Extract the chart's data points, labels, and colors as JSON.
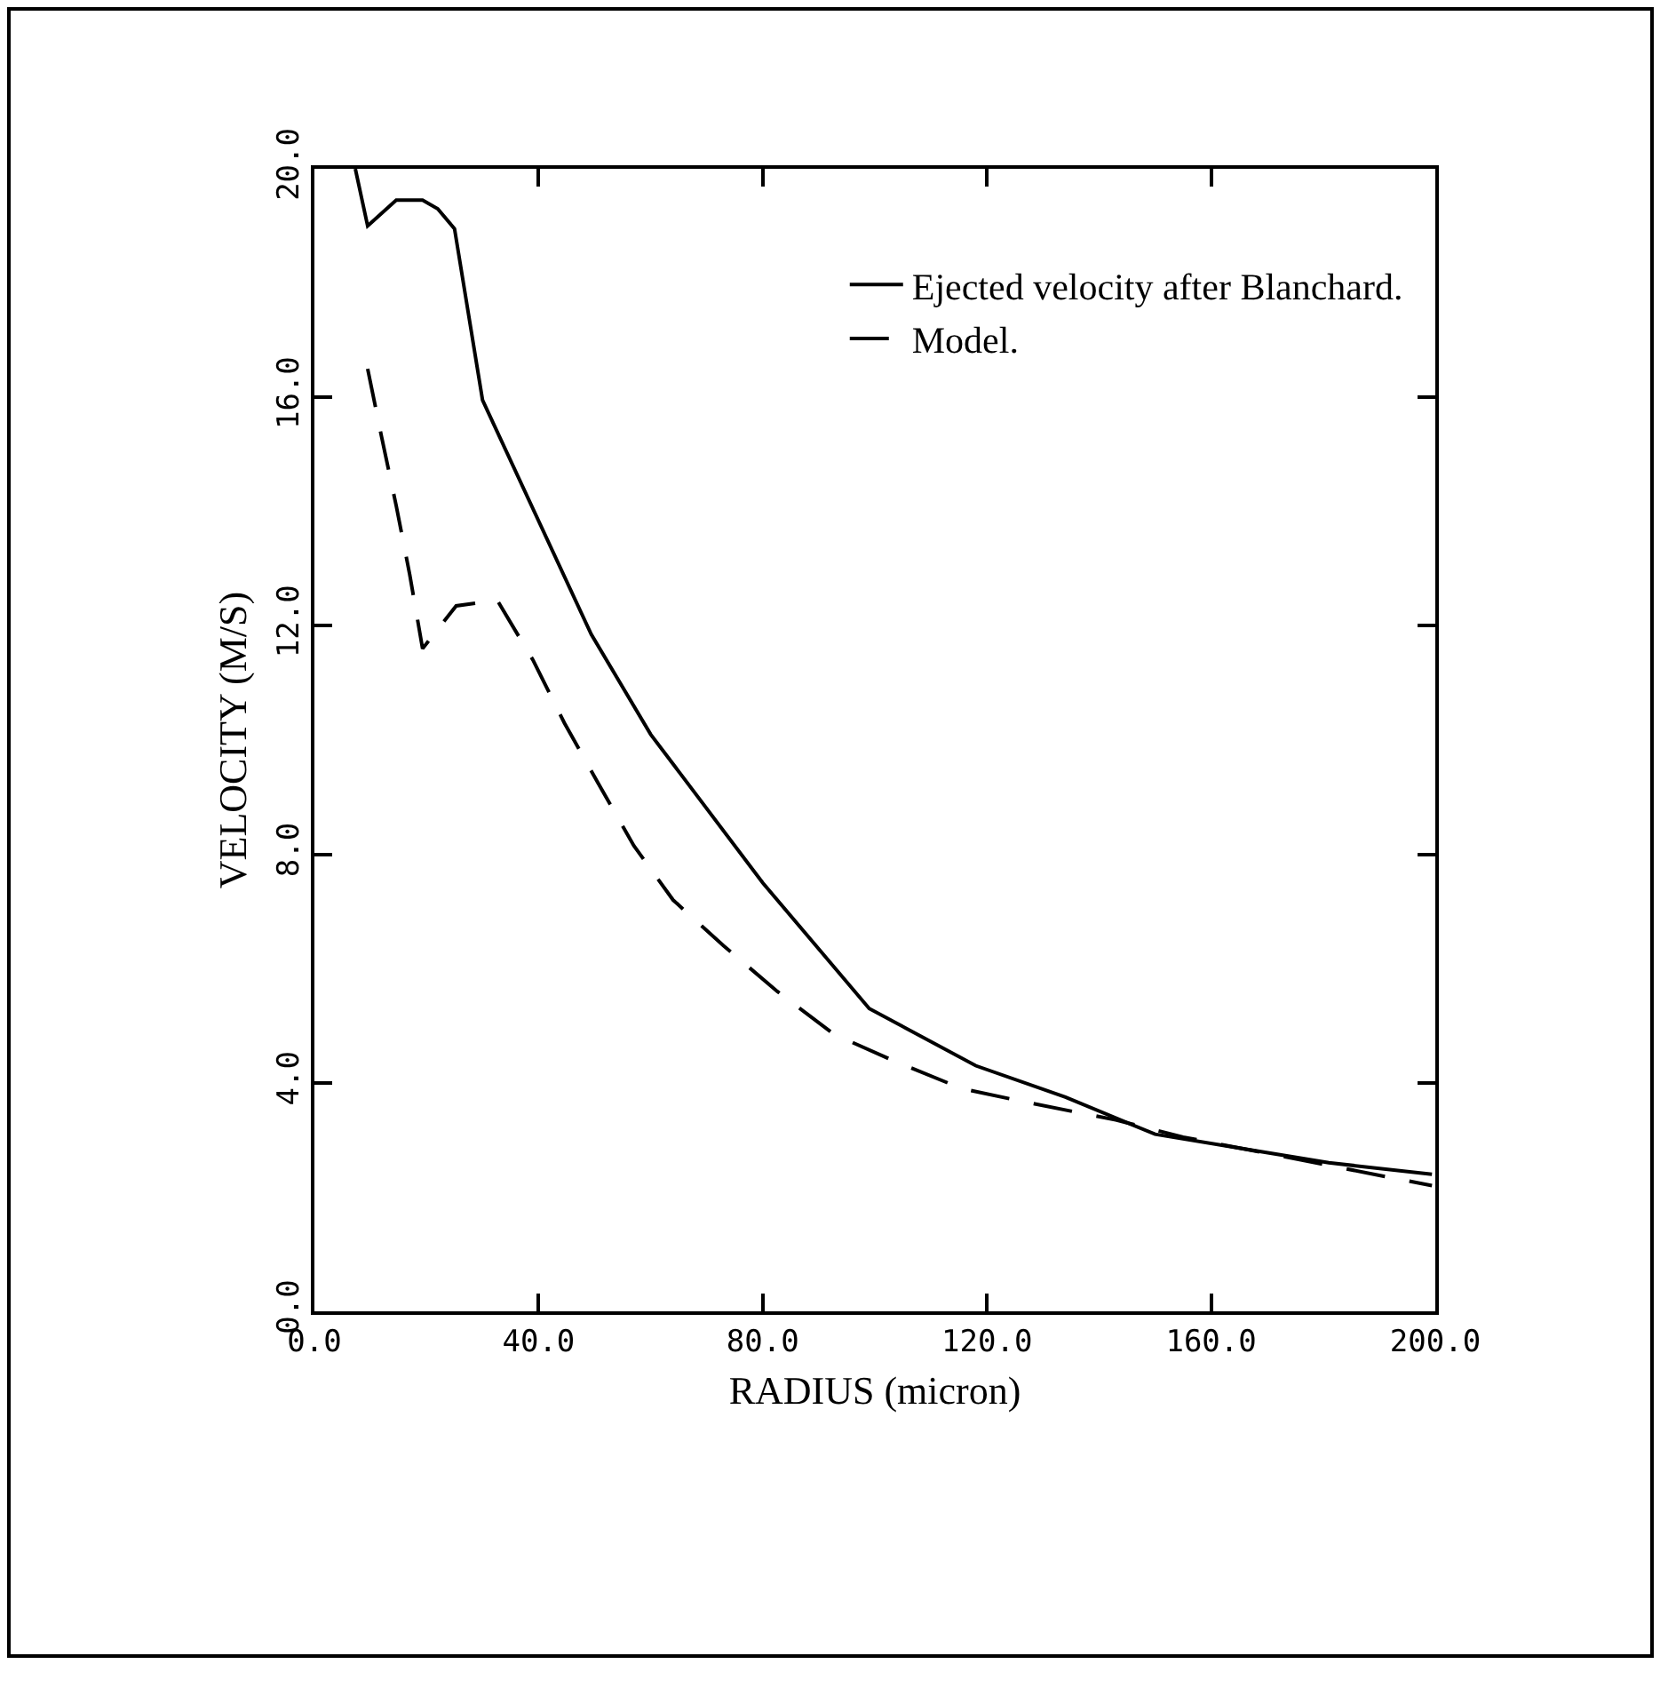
{
  "chart_data": {
    "type": "line",
    "xlabel": "RADIUS (micron)",
    "ylabel": "VELOCITY (M/S)",
    "xlim": [
      0,
      200
    ],
    "ylim": [
      0,
      20
    ],
    "xticks": [
      {
        "value": 0,
        "label": "0.0"
      },
      {
        "value": 40,
        "label": "40.0"
      },
      {
        "value": 80,
        "label": "80.0"
      },
      {
        "value": 120,
        "label": "120.0"
      },
      {
        "value": 160,
        "label": "160.0"
      },
      {
        "value": 200,
        "label": "200.0"
      }
    ],
    "yticks": [
      {
        "value": 0,
        "label": "0.0"
      },
      {
        "value": 4,
        "label": "4.0"
      },
      {
        "value": 8,
        "label": "8.0"
      },
      {
        "value": 12,
        "label": "12.0"
      },
      {
        "value": 16,
        "label": "16.0"
      },
      {
        "value": 20,
        "label": "20.0"
      }
    ],
    "grid": false,
    "legend": "top right",
    "marker": "none",
    "series": [
      {
        "name": "Ejected velocity after Blanchard.",
        "color": "#000000",
        "line_style": "solid",
        "x": [
          7.3,
          9.5,
          14.6,
          19.3,
          22,
          25,
          30,
          49.4,
          60,
          80,
          99,
          118,
          134,
          150,
          165.5,
          181,
          199.4
        ],
        "values": [
          20.0,
          19.0,
          19.45,
          19.45,
          19.3,
          18.95,
          15.95,
          11.85,
          10.1,
          7.5,
          5.3,
          4.3,
          3.75,
          3.1,
          2.85,
          2.6,
          2.4
        ]
      },
      {
        "name": "Model.",
        "color": "#000000",
        "line_style": "dashed",
        "x": [
          9.5,
          12,
          14.6,
          17,
          19.3,
          25.3,
          32.6,
          39,
          44.6,
          50.6,
          57,
          64,
          73,
          82.6,
          92.7,
          103,
          115.5,
          127.5,
          143,
          155,
          176,
          199.4
        ],
        "values": [
          16.5,
          15.3,
          14.1,
          12.9,
          11.6,
          12.35,
          12.45,
          11.4,
          10.3,
          9.25,
          8.15,
          7.2,
          6.4,
          5.6,
          4.85,
          4.4,
          3.9,
          3.65,
          3.35,
          3.05,
          2.65,
          2.2
        ]
      }
    ]
  }
}
